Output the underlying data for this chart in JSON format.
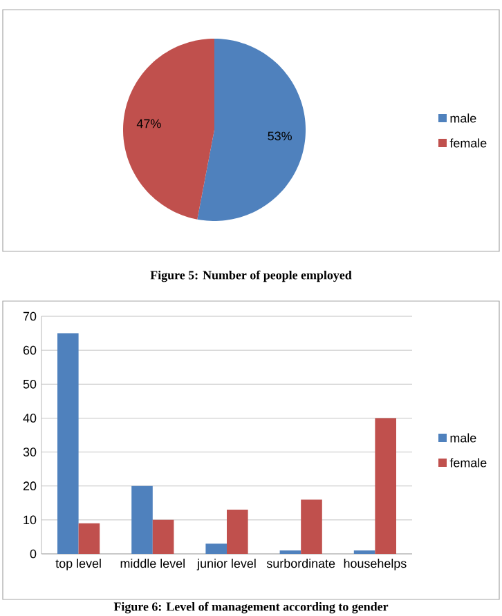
{
  "chart_data": [
    {
      "type": "pie",
      "title": "Figure 5: Number of people employed",
      "categories": [
        "male",
        "female"
      ],
      "values": [
        53,
        47
      ],
      "colors": [
        "#4f81bd",
        "#c0504d"
      ],
      "value_labels": [
        "53%",
        "47%"
      ],
      "legend": "right"
    },
    {
      "type": "bar",
      "title": "Figure 6: Level of management according to gender",
      "categories": [
        "top level",
        "middle level",
        "junior level",
        "surbordinate",
        "househelps"
      ],
      "series": [
        {
          "name": "male",
          "color": "#4f81bd",
          "values": [
            65,
            20,
            3,
            1,
            1
          ]
        },
        {
          "name": "female",
          "color": "#c0504d",
          "values": [
            9,
            10,
            13,
            16,
            40
          ]
        }
      ],
      "ylim": [
        0,
        70
      ],
      "yticks": [
        0,
        10,
        20,
        30,
        40,
        50,
        60,
        70
      ],
      "grid": "y",
      "legend": "right"
    }
  ]
}
